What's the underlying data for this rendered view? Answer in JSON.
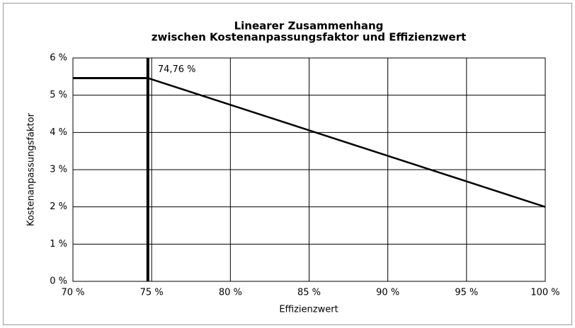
{
  "chart_data": {
    "type": "line",
    "title": [
      "Linearer Zusammenhang",
      "zwischen Kostenanpassungsfaktor und Effizienzwert"
    ],
    "xlabel": "Effizienzwert",
    "ylabel": "Kostenanpassungsfaktor",
    "series": [
      {
        "name": "Kostenanpassungsfaktor",
        "color": "#000000",
        "x": [
          74.76,
          100
        ],
        "values": [
          5.46,
          2
        ]
      }
    ],
    "annotation": {
      "text": "74,76 %"
    },
    "xlim": [
      70,
      100
    ],
    "xticks": [
      {
        "value": 70,
        "label": "70 %"
      },
      {
        "value": 75,
        "label": "75 %"
      },
      {
        "value": 80,
        "label": "80 %"
      },
      {
        "value": 85,
        "label": "85 %"
      },
      {
        "value": 90,
        "label": "90 %"
      },
      {
        "value": 95,
        "label": "95 %"
      },
      {
        "value": 100,
        "label": "100 %"
      }
    ],
    "ylim": [
      0,
      6
    ],
    "yticks": [
      {
        "value": 0,
        "label": "0 %"
      },
      {
        "value": 1,
        "label": "1 %"
      },
      {
        "value": 2,
        "label": "2 %"
      },
      {
        "value": 3,
        "label": "3 %"
      },
      {
        "value": 4,
        "label": "4 %"
      },
      {
        "value": 5,
        "label": "5 %"
      },
      {
        "value": 6,
        "label": "6 %"
      }
    ],
    "grid": true
  }
}
